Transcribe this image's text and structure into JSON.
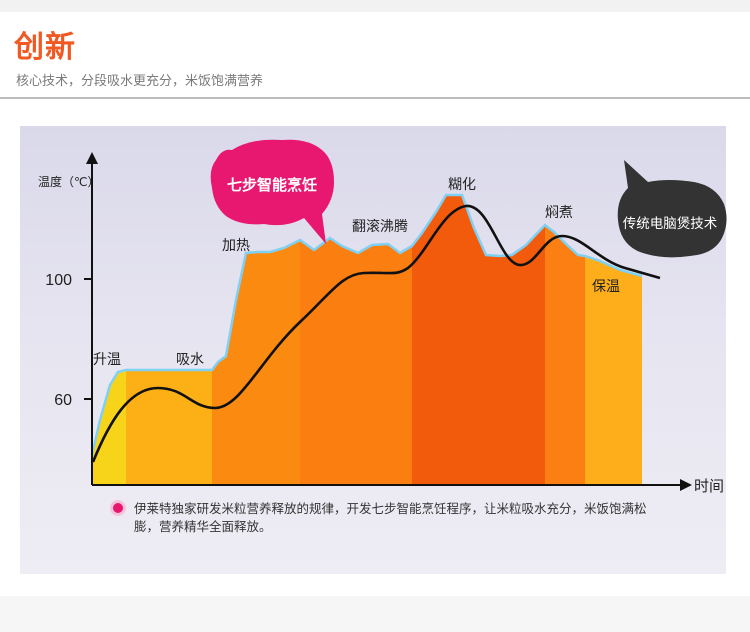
{
  "header": {
    "title": "创新",
    "subtitle": "核心技术，分段吸水更充分，米饭饱满营养"
  },
  "colors": {
    "accent": "#f05a22",
    "pink_bubble": "#e8176f",
    "dark_bubble": "#333333",
    "curve": "#111111",
    "outline": "#7fd0f2"
  },
  "chart_data": {
    "type": "area",
    "ylabel": "温度（℃）",
    "xlabel": "时间",
    "yticks": [
      100,
      60
    ],
    "stages": [
      {
        "label": "升温",
        "color": "#f7d41a"
      },
      {
        "label": "吸水",
        "color": "#fdb016"
      },
      {
        "label": "加热",
        "color": "#fb8a10"
      },
      {
        "label": "翻滚沸腾",
        "color": "#fb7e10"
      },
      {
        "label": "糊化",
        "color": "#f25a0c"
      },
      {
        "label": "焖煮",
        "color": "#fc7f14"
      },
      {
        "label": "保温",
        "color": "#fdae1a"
      }
    ],
    "bubbles": {
      "pink": "七步智能烹饪",
      "dark": "传统电脑煲技术"
    },
    "caption": "伊莱特独家研发米粒营养释放的规律，开发七步智能烹饪程序，让米粒吸水充分，米饭饱满松膨，营养精华全面释放。"
  }
}
